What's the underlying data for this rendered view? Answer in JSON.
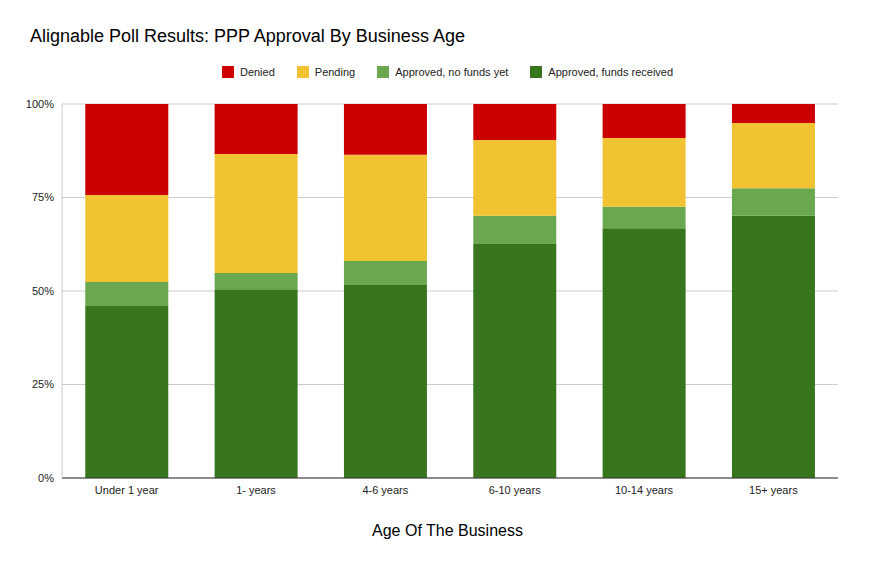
{
  "chart_data": {
    "type": "bar",
    "title": "Alignable Poll Results: PPP Approval By Business Age",
    "x_label": "Age Of The Business",
    "categories": [
      "Under 1 year",
      "1- years",
      "4-6 years",
      "6-10 years",
      "10-14 years",
      "15+ years"
    ],
    "series": [
      {
        "name": "Denied",
        "color": "#cc0000",
        "values": [
          24.3,
          13.4,
          13.6,
          9.6,
          9.1,
          5.1
        ]
      },
      {
        "name": "Pending",
        "color": "#f1c232",
        "values": [
          23.3,
          31.8,
          28.4,
          20.3,
          18.4,
          17.4
        ]
      },
      {
        "name": "Approved, no funds yet",
        "color": "#6aa84f",
        "values": [
          6.4,
          4.3,
          6.4,
          7.5,
          5.7,
          7.4
        ]
      },
      {
        "name": "Approved, funds received",
        "color": "#38761d",
        "values": [
          46.0,
          50.5,
          51.6,
          62.6,
          66.8,
          70.1
        ]
      }
    ],
    "stacked": true,
    "ylim": [
      0,
      100
    ],
    "yticks": [
      {
        "value": 0,
        "label": "0%"
      },
      {
        "value": 25,
        "label": "25%"
      },
      {
        "value": 50,
        "label": "50%"
      },
      {
        "value": 75,
        "label": "75%"
      },
      {
        "value": 100,
        "label": "100%"
      }
    ],
    "grid": true,
    "legend": "top"
  }
}
